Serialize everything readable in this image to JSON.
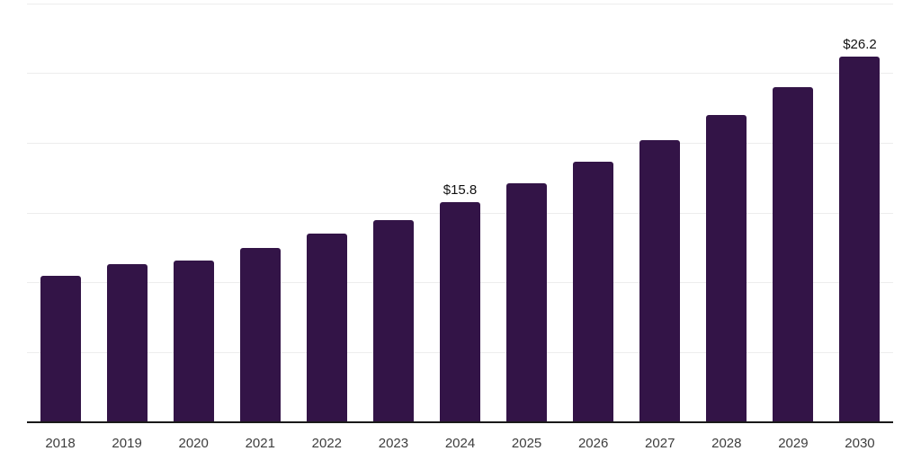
{
  "chart_data": {
    "type": "bar",
    "title": "",
    "xlabel": "",
    "ylabel": "",
    "categories": [
      "2018",
      "2019",
      "2020",
      "2021",
      "2022",
      "2023",
      "2024",
      "2025",
      "2026",
      "2027",
      "2028",
      "2029",
      "2030"
    ],
    "values": [
      10.5,
      11.3,
      11.6,
      12.5,
      13.5,
      14.5,
      15.8,
      17.1,
      18.7,
      20.2,
      22.0,
      24.0,
      26.2
    ],
    "data_labels": {
      "2024": "$15.8",
      "2030": "$26.2"
    },
    "ylim": [
      0,
      30
    ],
    "gridline_step": 5,
    "grid": true,
    "legend": false,
    "colors": {
      "bar": "#331447",
      "background": "#ffffff",
      "gridline": "#ededed",
      "axis_line": "#1a1a1a",
      "tick_label": "#3d3d3d",
      "data_label": "#111111"
    }
  }
}
